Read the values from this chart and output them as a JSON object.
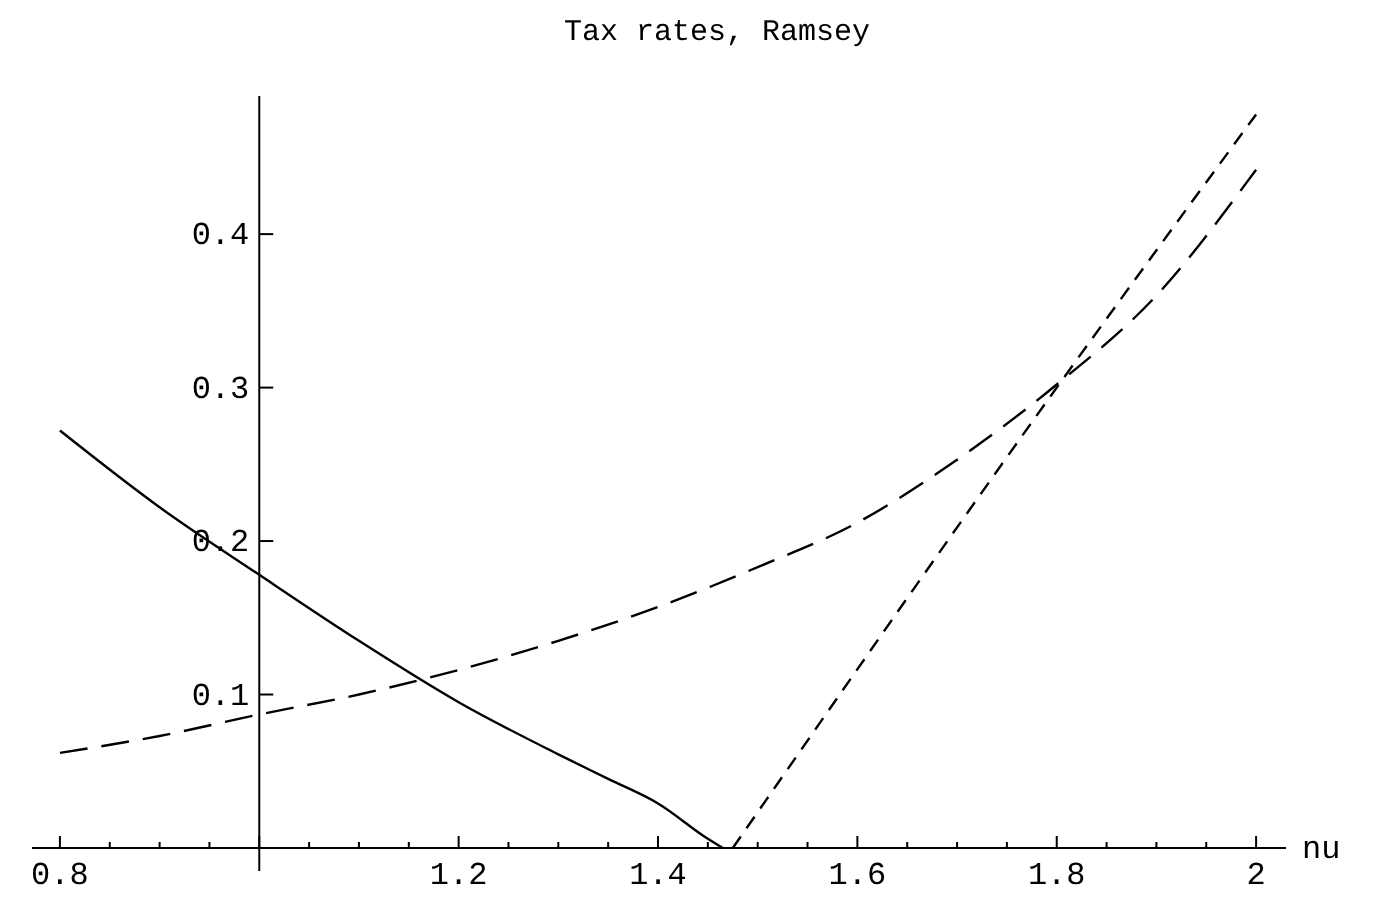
{
  "chart_data": {
    "type": "line",
    "title": "Tax rates, Ramsey",
    "xlabel": "nu",
    "xlim": [
      0.772,
      2.03
    ],
    "ylim": [
      -0.015,
      0.49
    ],
    "xticks": [
      0.8,
      {
        "value": 0.85,
        "label": null
      },
      {
        "value": 0.9,
        "label": null
      },
      {
        "value": 0.95,
        "label": null
      },
      {
        "value": 1,
        "label": null
      },
      {
        "value": 1.05,
        "label": null
      },
      {
        "value": 1.1,
        "label": null
      },
      {
        "value": 1.15,
        "label": null
      },
      1.2,
      {
        "value": 1.25,
        "label": null
      },
      {
        "value": 1.3,
        "label": null
      },
      {
        "value": 1.35,
        "label": null
      },
      1.4,
      {
        "value": 1.45,
        "label": null
      },
      {
        "value": 1.5,
        "label": null
      },
      {
        "value": 1.55,
        "label": null
      },
      1.6,
      {
        "value": 1.65,
        "label": null
      },
      {
        "value": 1.7,
        "label": null
      },
      {
        "value": 1.75,
        "label": null
      },
      1.8,
      {
        "value": 1.85,
        "label": null
      },
      {
        "value": 1.9,
        "label": null
      },
      {
        "value": 1.95,
        "label": null
      },
      2
    ],
    "yticks": [
      0.1,
      0.2,
      0.3,
      0.4
    ],
    "grid": false,
    "series": [
      {
        "color": "#000000",
        "line_style": "solid",
        "x": [
          0.8,
          0.9,
          1.0,
          1.1,
          1.2,
          1.3,
          1.35,
          1.4,
          1.45,
          1.465
        ],
        "values": [
          0.272,
          0.222,
          0.178,
          0.135,
          0.095,
          0.061,
          0.045,
          0.029,
          0.006,
          0
        ]
      },
      {
        "color": "#000000",
        "line_style": "dashed",
        "x": [
          0.8,
          0.9,
          1.0,
          1.1,
          1.2,
          1.3,
          1.4,
          1.5,
          1.6,
          1.7,
          1.8,
          1.9,
          2.0
        ],
        "values": [
          0.062,
          0.073,
          0.087,
          0.1,
          0.116,
          0.135,
          0.157,
          0.183,
          0.212,
          0.253,
          0.302,
          0.36,
          0.442
        ]
      },
      {
        "color": "#000000",
        "line_style": "dashed",
        "x": [
          1.475,
          1.8,
          2.0
        ],
        "values": [
          0,
          0.3,
          0.478
        ]
      }
    ]
  }
}
